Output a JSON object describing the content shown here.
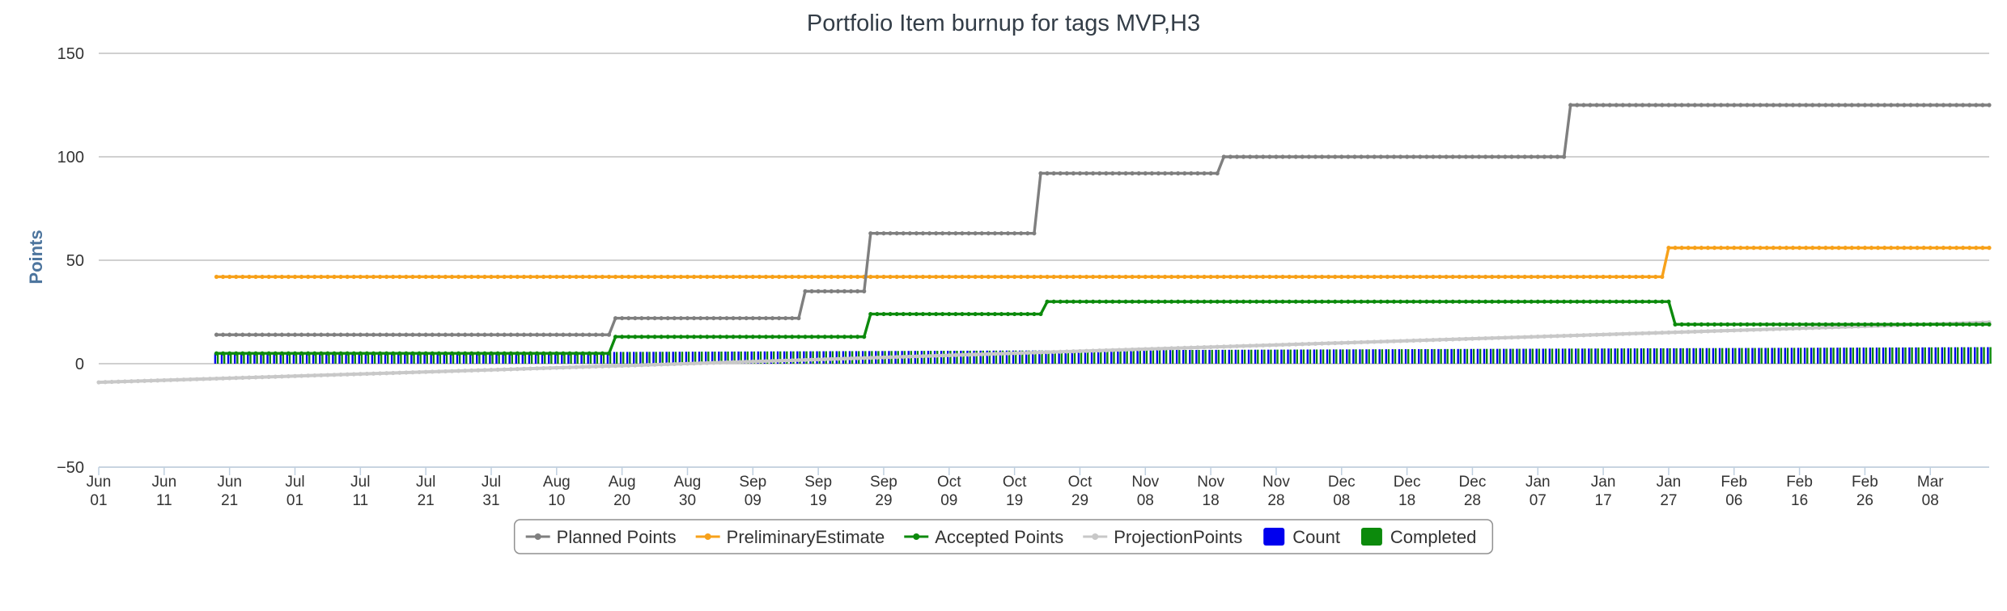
{
  "chart_data": {
    "type": "line",
    "title": "Portfolio Item burnup for tags MVP,H3",
    "ylabel": "Points",
    "xlabel": "",
    "ylim": [
      -50,
      150
    ],
    "yticks": [
      "150",
      "100",
      "50",
      "0",
      "−50"
    ],
    "ytick_values": [
      150,
      100,
      50,
      0,
      -50
    ],
    "xlim": [
      "2016-06-01",
      "2017-03-17"
    ],
    "xticks": [
      {
        "date": "2016-06-01",
        "label": [
          "Jun",
          "01"
        ]
      },
      {
        "date": "2016-06-11",
        "label": [
          "Jun",
          "11"
        ]
      },
      {
        "date": "2016-06-21",
        "label": [
          "Jun",
          "21"
        ]
      },
      {
        "date": "2016-07-01",
        "label": [
          "Jul",
          "01"
        ]
      },
      {
        "date": "2016-07-11",
        "label": [
          "Jul",
          "11"
        ]
      },
      {
        "date": "2016-07-21",
        "label": [
          "Jul",
          "21"
        ]
      },
      {
        "date": "2016-07-31",
        "label": [
          "Jul",
          "31"
        ]
      },
      {
        "date": "2016-08-10",
        "label": [
          "Aug",
          "10"
        ]
      },
      {
        "date": "2016-08-20",
        "label": [
          "Aug",
          "20"
        ]
      },
      {
        "date": "2016-08-30",
        "label": [
          "Aug",
          "30"
        ]
      },
      {
        "date": "2016-09-09",
        "label": [
          "Sep",
          "09"
        ]
      },
      {
        "date": "2016-09-19",
        "label": [
          "Sep",
          "19"
        ]
      },
      {
        "date": "2016-09-29",
        "label": [
          "Sep",
          "29"
        ]
      },
      {
        "date": "2016-10-09",
        "label": [
          "Oct",
          "09"
        ]
      },
      {
        "date": "2016-10-19",
        "label": [
          "Oct",
          "19"
        ]
      },
      {
        "date": "2016-10-29",
        "label": [
          "Oct",
          "29"
        ]
      },
      {
        "date": "2016-11-08",
        "label": [
          "Nov",
          "08"
        ]
      },
      {
        "date": "2016-11-18",
        "label": [
          "Nov",
          "18"
        ]
      },
      {
        "date": "2016-11-28",
        "label": [
          "Nov",
          "28"
        ]
      },
      {
        "date": "2016-12-08",
        "label": [
          "Dec",
          "08"
        ]
      },
      {
        "date": "2016-12-18",
        "label": [
          "Dec",
          "18"
        ]
      },
      {
        "date": "2016-12-28",
        "label": [
          "Dec",
          "28"
        ]
      },
      {
        "date": "2017-01-07",
        "label": [
          "Jan",
          "07"
        ]
      },
      {
        "date": "2017-01-17",
        "label": [
          "Jan",
          "17"
        ]
      },
      {
        "date": "2017-01-27",
        "label": [
          "Jan",
          "27"
        ]
      },
      {
        "date": "2017-02-06",
        "label": [
          "Feb",
          "06"
        ]
      },
      {
        "date": "2017-02-16",
        "label": [
          "Feb",
          "16"
        ]
      },
      {
        "date": "2017-02-26",
        "label": [
          "Feb",
          "26"
        ]
      },
      {
        "date": "2017-03-08",
        "label": [
          "Mar",
          "08"
        ]
      }
    ],
    "grid": true,
    "legend_position": "bottom-center",
    "series": [
      {
        "name": "Planned Points",
        "kind": "step",
        "color": "#7f7f7f",
        "points": [
          {
            "x": "2016-06-19",
            "y": 14
          },
          {
            "x": "2016-08-19",
            "y": 22
          },
          {
            "x": "2016-09-17",
            "y": 35
          },
          {
            "x": "2016-09-27",
            "y": 63
          },
          {
            "x": "2016-10-23",
            "y": 92
          },
          {
            "x": "2016-11-20",
            "y": 100
          },
          {
            "x": "2017-01-12",
            "y": 125
          },
          {
            "x": "2017-03-17",
            "y": 125
          }
        ]
      },
      {
        "name": "PreliminaryEstimate",
        "kind": "step",
        "color": "#f7a11a",
        "points": [
          {
            "x": "2016-06-19",
            "y": 42
          },
          {
            "x": "2017-01-27",
            "y": 56
          },
          {
            "x": "2017-03-17",
            "y": 56
          }
        ]
      },
      {
        "name": "Accepted Points",
        "kind": "step",
        "color": "#0c8a0c",
        "points": [
          {
            "x": "2016-06-19",
            "y": 5
          },
          {
            "x": "2016-08-19",
            "y": 13
          },
          {
            "x": "2016-09-27",
            "y": 24
          },
          {
            "x": "2016-10-24",
            "y": 30
          },
          {
            "x": "2017-01-28",
            "y": 19
          },
          {
            "x": "2017-03-17",
            "y": 19
          }
        ]
      },
      {
        "name": "ProjectionPoints",
        "kind": "line",
        "color": "#c8c8c8",
        "points": [
          {
            "x": "2016-06-01",
            "y": -9
          },
          {
            "x": "2017-03-17",
            "y": 20
          }
        ]
      }
    ],
    "bar_series": [
      {
        "name": "Count",
        "color": "#0000ee",
        "start": "2016-06-19",
        "end": "2017-03-17",
        "y_start": 5,
        "y_end": 8
      },
      {
        "name": "Completed",
        "color": "#0c8a0c",
        "start": "2016-06-19",
        "end": "2017-03-17",
        "y_start": 5,
        "y_end": 8
      }
    ],
    "legend": [
      {
        "name": "Planned Points",
        "symbol": "line",
        "color": "#7f7f7f"
      },
      {
        "name": "PreliminaryEstimate",
        "symbol": "line",
        "color": "#f7a11a"
      },
      {
        "name": "Accepted Points",
        "symbol": "line",
        "color": "#0c8a0c"
      },
      {
        "name": "ProjectionPoints",
        "symbol": "line",
        "color": "#c8c8c8"
      },
      {
        "name": "Count",
        "symbol": "box",
        "color": "#0000ee"
      },
      {
        "name": "Completed",
        "symbol": "box",
        "color": "#0c8a0c"
      }
    ]
  }
}
